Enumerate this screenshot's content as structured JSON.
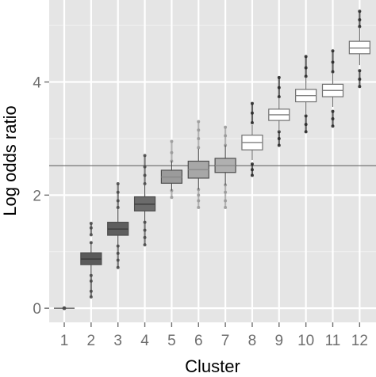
{
  "chart_data": {
    "type": "boxplot",
    "title": "",
    "xlabel": "Cluster",
    "ylabel": "Log odds ratio",
    "categories": [
      "1",
      "2",
      "3",
      "4",
      "5",
      "6",
      "7",
      "8",
      "9",
      "10",
      "11",
      "12"
    ],
    "ylim": [
      -0.25,
      5.45
    ],
    "yticks": [
      0,
      2,
      4
    ],
    "reference_line": 2.52,
    "grid": true,
    "boxes": [
      {
        "cluster": "1",
        "whisker_low": 0.0,
        "q1": 0.0,
        "median": 0.0,
        "q3": 0.0,
        "whisker_high": 0.0,
        "fill": "#4d4d4d",
        "outliers": [
          0.0
        ]
      },
      {
        "cluster": "2",
        "whisker_low": 0.58,
        "q1": 0.77,
        "median": 0.87,
        "q3": 0.98,
        "whisker_high": 1.18,
        "fill": "#5a5a5a",
        "outliers": [
          0.2,
          0.3,
          0.48,
          0.58,
          1.16,
          1.3,
          1.42,
          1.5
        ]
      },
      {
        "cluster": "3",
        "whisker_low": 1.1,
        "q1": 1.29,
        "median": 1.4,
        "q3": 1.52,
        "whisker_high": 1.76,
        "fill": "#5e5e5e",
        "outliers": [
          0.72,
          0.85,
          0.97,
          1.1,
          1.78,
          1.9,
          2.05,
          2.2
        ]
      },
      {
        "cluster": "4",
        "whisker_low": 1.52,
        "q1": 1.72,
        "median": 1.84,
        "q3": 1.97,
        "whisker_high": 2.18,
        "fill": "#6b6b6b",
        "outliers": [
          1.12,
          1.25,
          1.38,
          1.52,
          2.2,
          2.35,
          2.5,
          2.7
        ]
      },
      {
        "cluster": "5",
        "whisker_low": 2.08,
        "q1": 2.21,
        "median": 2.32,
        "q3": 2.44,
        "whisker_high": 2.6,
        "fill": "#9b9b9b",
        "outliers": [
          1.96,
          2.08,
          2.6,
          2.75,
          2.95
        ]
      },
      {
        "cluster": "6",
        "whisker_low": 2.1,
        "q1": 2.3,
        "median": 2.45,
        "q3": 2.6,
        "whisker_high": 2.82,
        "fill": "#a7a7a7",
        "outliers": [
          1.78,
          1.9,
          2.0,
          2.1,
          2.84,
          3.0,
          3.15,
          3.3
        ]
      },
      {
        "cluster": "7",
        "whisker_low": 2.18,
        "q1": 2.4,
        "median": 2.52,
        "q3": 2.65,
        "whisker_high": 2.88,
        "fill": "#b0b0b0",
        "outliers": [
          1.78,
          1.9,
          2.05,
          2.18,
          2.88,
          3.05,
          3.2
        ]
      },
      {
        "cluster": "8",
        "whisker_low": 2.62,
        "q1": 2.8,
        "median": 2.93,
        "q3": 3.06,
        "whisker_high": 3.24,
        "fill": "#ffffff",
        "outliers": [
          2.35,
          2.45,
          2.55,
          3.28,
          3.45,
          3.62
        ]
      },
      {
        "cluster": "9",
        "whisker_low": 3.12,
        "q1": 3.32,
        "median": 3.42,
        "q3": 3.52,
        "whisker_high": 3.72,
        "fill": "#ffffff",
        "outliers": [
          2.88,
          3.0,
          3.12,
          3.74,
          3.9,
          4.08
        ]
      },
      {
        "cluster": "10",
        "whisker_low": 3.42,
        "q1": 3.65,
        "median": 3.76,
        "q3": 3.87,
        "whisker_high": 4.08,
        "fill": "#ffffff",
        "outliers": [
          3.12,
          3.25,
          3.4,
          4.1,
          4.25,
          4.45
        ]
      },
      {
        "cluster": "11",
        "whisker_low": 3.56,
        "q1": 3.74,
        "median": 3.85,
        "q3": 3.96,
        "whisker_high": 4.16,
        "fill": "#ffffff",
        "outliers": [
          3.22,
          3.35,
          3.48,
          4.18,
          4.35,
          4.55
        ]
      },
      {
        "cluster": "12",
        "whisker_low": 4.3,
        "q1": 4.5,
        "median": 4.6,
        "q3": 4.72,
        "whisker_high": 4.95,
        "fill": "#ffffff",
        "outliers": [
          3.92,
          4.05,
          4.2,
          4.98,
          5.1,
          5.25
        ]
      }
    ],
    "colors": {
      "panel_background": "#e5e5e5",
      "grid_major": "#ffffff",
      "grid_minor": "#f2f2f2",
      "box_stroke": "#4d4d4d",
      "reference_line": "#666666",
      "dark_median": "#3a3a3a",
      "light_median": "#7f7f7f"
    }
  }
}
